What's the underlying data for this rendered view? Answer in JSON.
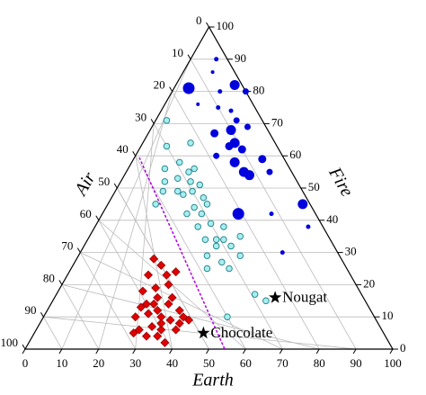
{
  "chart_data": {
    "type": "ternary",
    "earth_label": "Earth",
    "fire_label": "Fire",
    "air_label": "Air",
    "earth_ticks": [
      0,
      10,
      20,
      30,
      40,
      50,
      60,
      70,
      80,
      90,
      100
    ],
    "fire_ticks": [
      0,
      10,
      20,
      30,
      40,
      50,
      60,
      70,
      80,
      90,
      100
    ],
    "air_ticks": [
      0,
      10,
      20,
      30,
      40,
      50,
      60,
      70,
      80,
      90,
      100
    ],
    "grid": true,
    "series": [
      {
        "marker": "circle",
        "color": "#0000dd",
        "stroke": "#0000dd",
        "earth": [
          7,
          8,
          4,
          16,
          20,
          13,
          15,
          19,
          22,
          18,
          22,
          26,
          25,
          24,
          28,
          35,
          22,
          28,
          32,
          34,
          39,
          37,
          46,
          53,
          58,
          55,
          9
        ],
        "fire": [
          90,
          86,
          81,
          82,
          80,
          80,
          75,
          74,
          71,
          67,
          68,
          69,
          64,
          63,
          62,
          59,
          60,
          58,
          55,
          54,
          55,
          42,
          42,
          45,
          38,
          30,
          76
        ],
        "sizes": [
          2,
          1.5,
          6,
          5,
          3,
          2,
          2,
          2,
          3,
          4,
          5,
          3,
          5,
          4,
          4,
          4,
          3,
          5,
          5,
          5,
          3,
          6,
          2,
          5,
          2,
          2,
          1.5
        ]
      },
      {
        "marker": "circle",
        "color": "#a8eeee",
        "stroke": "#1a7f8a",
        "earth": [
          3,
          7,
          13,
          10,
          13,
          17,
          18,
          12,
          15,
          19,
          22,
          13,
          13,
          17,
          19,
          21,
          25,
          23,
          24,
          27,
          31,
          35,
          32,
          37,
          35,
          35,
          36,
          41,
          37,
          43,
          40,
          54,
          58,
          50,
          27,
          44,
          40,
          28
        ],
        "fire": [
          71,
          63,
          64,
          56,
          58,
          55,
          56,
          52,
          53,
          52,
          51,
          45,
          49,
          49,
          48,
          49,
          47,
          42,
          44,
          42,
          39,
          34,
          34,
          34,
          38,
          29,
          32,
          35,
          25,
          25,
          27,
          17,
          15,
          10,
          45,
          29,
          32,
          38
        ]
      },
      {
        "marker": "diamond",
        "color": "#e00000",
        "stroke": "#8a0000",
        "earth": [
          24,
          22,
          29,
          29,
          26,
          23,
          28,
          32,
          25,
          28,
          32,
          36,
          25,
          28,
          32,
          35,
          38,
          28,
          31,
          34,
          38,
          31,
          34,
          37,
          27,
          40,
          30,
          26,
          33,
          38,
          27,
          21
        ],
        "fire": [
          26,
          23,
          24,
          20,
          19,
          18,
          16,
          16,
          13,
          14,
          14,
          12,
          10,
          11,
          10,
          9,
          10,
          6,
          7,
          6,
          6,
          4,
          4,
          2,
          5,
          9,
          12,
          14,
          8,
          8,
          23,
          28
        ]
      }
    ],
    "annotations": [
      {
        "text": "Nougat",
        "earth": 60,
        "fire": 16
      },
      {
        "text": "Chocolate",
        "earth": 46,
        "fire": 5
      }
    ]
  }
}
